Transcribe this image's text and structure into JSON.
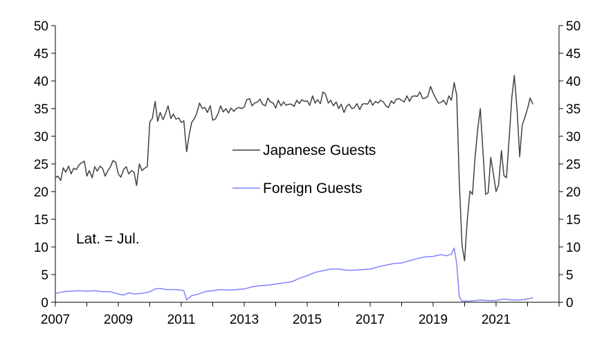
{
  "chart_data": {
    "type": "line",
    "x_range": [
      2007,
      2023.0
    ],
    "ylim": [
      0,
      50
    ],
    "y_ticks": [
      "0",
      "5",
      "10",
      "15",
      "20",
      "25",
      "30",
      "35",
      "40",
      "45",
      "50"
    ],
    "x_ticks": [
      "2007",
      "2009",
      "2011",
      "2013",
      "2015",
      "2017",
      "2019",
      "2021"
    ],
    "x_tick_values": [
      2007,
      2009,
      2011,
      2013,
      2015,
      2017,
      2019,
      2021
    ],
    "grid": false,
    "legend_position": "center",
    "annotation": "Lat. = Jul.",
    "series": [
      {
        "name": "Japanese Guests",
        "color": "#404040",
        "points": [
          [
            2007.0,
            22.5
          ],
          [
            2007.08,
            22.8
          ],
          [
            2007.17,
            22.0
          ],
          [
            2007.25,
            24.3
          ],
          [
            2007.33,
            23.5
          ],
          [
            2007.42,
            24.6
          ],
          [
            2007.5,
            23.2
          ],
          [
            2007.58,
            24.2
          ],
          [
            2007.67,
            24.0
          ],
          [
            2007.75,
            24.8
          ],
          [
            2007.83,
            25.2
          ],
          [
            2007.92,
            25.5
          ],
          [
            2008.0,
            22.8
          ],
          [
            2008.08,
            23.8
          ],
          [
            2008.17,
            22.5
          ],
          [
            2008.25,
            24.5
          ],
          [
            2008.33,
            23.7
          ],
          [
            2008.42,
            24.6
          ],
          [
            2008.5,
            24.2
          ],
          [
            2008.58,
            22.8
          ],
          [
            2008.67,
            23.8
          ],
          [
            2008.75,
            24.5
          ],
          [
            2008.83,
            25.6
          ],
          [
            2008.92,
            25.3
          ],
          [
            2009.0,
            23.2
          ],
          [
            2009.08,
            22.6
          ],
          [
            2009.17,
            24.0
          ],
          [
            2009.25,
            24.5
          ],
          [
            2009.33,
            23.2
          ],
          [
            2009.42,
            23.8
          ],
          [
            2009.5,
            23.5
          ],
          [
            2009.58,
            21.1
          ],
          [
            2009.67,
            25.0
          ],
          [
            2009.75,
            23.8
          ],
          [
            2009.83,
            24.2
          ],
          [
            2009.92,
            24.5
          ],
          [
            2010.0,
            32.6
          ],
          [
            2010.08,
            33.2
          ],
          [
            2010.17,
            36.3
          ],
          [
            2010.25,
            32.7
          ],
          [
            2010.33,
            34.3
          ],
          [
            2010.42,
            33.0
          ],
          [
            2010.5,
            34.1
          ],
          [
            2010.58,
            35.5
          ],
          [
            2010.67,
            33.2
          ],
          [
            2010.75,
            34.0
          ],
          [
            2010.83,
            33.1
          ],
          [
            2010.92,
            33.3
          ],
          [
            2011.0,
            32.5
          ],
          [
            2011.08,
            32.8
          ],
          [
            2011.17,
            27.2
          ],
          [
            2011.25,
            30.2
          ],
          [
            2011.33,
            32.5
          ],
          [
            2011.42,
            33.2
          ],
          [
            2011.5,
            34.3
          ],
          [
            2011.58,
            36.0
          ],
          [
            2011.67,
            35.0
          ],
          [
            2011.75,
            35.2
          ],
          [
            2011.83,
            34.3
          ],
          [
            2011.92,
            35.5
          ],
          [
            2012.0,
            32.9
          ],
          [
            2012.08,
            33.1
          ],
          [
            2012.17,
            34.1
          ],
          [
            2012.25,
            35.5
          ],
          [
            2012.33,
            34.4
          ],
          [
            2012.42,
            35.0
          ],
          [
            2012.5,
            34.2
          ],
          [
            2012.58,
            35.1
          ],
          [
            2012.67,
            34.5
          ],
          [
            2012.75,
            35.0
          ],
          [
            2012.83,
            35.2
          ],
          [
            2012.92,
            35.0
          ],
          [
            2013.0,
            35.3
          ],
          [
            2013.08,
            36.6
          ],
          [
            2013.17,
            36.8
          ],
          [
            2013.25,
            35.5
          ],
          [
            2013.33,
            36.0
          ],
          [
            2013.42,
            36.2
          ],
          [
            2013.5,
            36.7
          ],
          [
            2013.58,
            35.8
          ],
          [
            2013.67,
            35.5
          ],
          [
            2013.75,
            36.9
          ],
          [
            2013.83,
            36.2
          ],
          [
            2013.92,
            36.0
          ],
          [
            2014.0,
            35.1
          ],
          [
            2014.08,
            36.5
          ],
          [
            2014.17,
            35.5
          ],
          [
            2014.25,
            36.2
          ],
          [
            2014.33,
            35.6
          ],
          [
            2014.42,
            35.8
          ],
          [
            2014.5,
            35.8
          ],
          [
            2014.58,
            35.4
          ],
          [
            2014.67,
            36.5
          ],
          [
            2014.75,
            35.9
          ],
          [
            2014.83,
            36.6
          ],
          [
            2014.92,
            36.3
          ],
          [
            2015.0,
            36.4
          ],
          [
            2015.08,
            35.6
          ],
          [
            2015.17,
            37.3
          ],
          [
            2015.25,
            36.0
          ],
          [
            2015.33,
            36.6
          ],
          [
            2015.42,
            35.9
          ],
          [
            2015.5,
            38.0
          ],
          [
            2015.58,
            37.6
          ],
          [
            2015.67,
            36.0
          ],
          [
            2015.75,
            36.5
          ],
          [
            2015.83,
            35.5
          ],
          [
            2015.92,
            36.2
          ],
          [
            2016.0,
            35.0
          ],
          [
            2016.08,
            35.8
          ],
          [
            2016.17,
            34.3
          ],
          [
            2016.25,
            35.4
          ],
          [
            2016.33,
            35.8
          ],
          [
            2016.42,
            35.0
          ],
          [
            2016.5,
            35.2
          ],
          [
            2016.58,
            35.9
          ],
          [
            2016.67,
            34.8
          ],
          [
            2016.75,
            35.8
          ],
          [
            2016.83,
            35.9
          ],
          [
            2016.92,
            35.8
          ],
          [
            2017.0,
            36.6
          ],
          [
            2017.08,
            35.6
          ],
          [
            2017.17,
            36.3
          ],
          [
            2017.25,
            36.0
          ],
          [
            2017.33,
            36.5
          ],
          [
            2017.42,
            36.2
          ],
          [
            2017.5,
            35.5
          ],
          [
            2017.58,
            35.2
          ],
          [
            2017.67,
            36.4
          ],
          [
            2017.75,
            35.9
          ],
          [
            2017.83,
            36.7
          ],
          [
            2017.92,
            36.8
          ],
          [
            2018.0,
            36.5
          ],
          [
            2018.08,
            36.2
          ],
          [
            2018.17,
            37.3
          ],
          [
            2018.25,
            36.3
          ],
          [
            2018.33,
            37.2
          ],
          [
            2018.42,
            37.3
          ],
          [
            2018.5,
            37.2
          ],
          [
            2018.58,
            38.0
          ],
          [
            2018.67,
            36.8
          ],
          [
            2018.75,
            36.9
          ],
          [
            2018.83,
            37.2
          ],
          [
            2018.92,
            39.0
          ],
          [
            2019.0,
            37.8
          ],
          [
            2019.08,
            36.9
          ],
          [
            2019.17,
            36.0
          ],
          [
            2019.25,
            36.1
          ],
          [
            2019.33,
            36.5
          ],
          [
            2019.42,
            35.7
          ],
          [
            2019.5,
            37.3
          ],
          [
            2019.58,
            36.5
          ],
          [
            2019.67,
            39.7
          ],
          [
            2019.75,
            37.4
          ],
          [
            2019.83,
            22.0
          ],
          [
            2019.92,
            10.2
          ],
          [
            2020.0,
            7.5
          ],
          [
            2020.08,
            14.5
          ],
          [
            2020.17,
            20.1
          ],
          [
            2020.25,
            19.5
          ],
          [
            2020.33,
            26.0
          ],
          [
            2020.42,
            31.5
          ],
          [
            2020.5,
            35.0
          ],
          [
            2020.58,
            27.5
          ],
          [
            2020.67,
            19.5
          ],
          [
            2020.75,
            19.8
          ],
          [
            2020.83,
            26.2
          ],
          [
            2020.92,
            23.0
          ],
          [
            2021.0,
            20.0
          ],
          [
            2021.08,
            21.2
          ],
          [
            2021.17,
            27.4
          ],
          [
            2021.25,
            22.9
          ],
          [
            2021.33,
            22.5
          ],
          [
            2021.42,
            30.0
          ],
          [
            2021.5,
            37.0
          ],
          [
            2021.58,
            41.0
          ],
          [
            2021.67,
            34.5
          ],
          [
            2021.75,
            26.3
          ],
          [
            2021.83,
            32.0
          ],
          [
            2021.92,
            33.5
          ],
          [
            2022.0,
            35.0
          ],
          [
            2022.08,
            36.9
          ],
          [
            2022.17,
            35.8
          ]
        ]
      },
      {
        "name": "Foreign Guests",
        "color": "#8080ff",
        "points": [
          [
            2007.0,
            1.6
          ],
          [
            2007.25,
            1.9
          ],
          [
            2007.5,
            2.0
          ],
          [
            2007.75,
            2.1
          ],
          [
            2008.0,
            2.0
          ],
          [
            2008.25,
            2.1
          ],
          [
            2008.5,
            1.9
          ],
          [
            2008.75,
            1.9
          ],
          [
            2009.0,
            1.5
          ],
          [
            2009.17,
            1.3
          ],
          [
            2009.33,
            1.7
          ],
          [
            2009.5,
            1.5
          ],
          [
            2009.75,
            1.6
          ],
          [
            2010.0,
            1.9
          ],
          [
            2010.17,
            2.4
          ],
          [
            2010.33,
            2.5
          ],
          [
            2010.5,
            2.3
          ],
          [
            2010.75,
            2.3
          ],
          [
            2011.0,
            2.2
          ],
          [
            2011.08,
            2.1
          ],
          [
            2011.17,
            0.4
          ],
          [
            2011.33,
            1.2
          ],
          [
            2011.5,
            1.4
          ],
          [
            2011.75,
            1.9
          ],
          [
            2012.0,
            2.1
          ],
          [
            2012.25,
            2.3
          ],
          [
            2012.5,
            2.2
          ],
          [
            2012.75,
            2.3
          ],
          [
            2013.0,
            2.4
          ],
          [
            2013.25,
            2.8
          ],
          [
            2013.5,
            3.0
          ],
          [
            2013.75,
            3.1
          ],
          [
            2014.0,
            3.3
          ],
          [
            2014.25,
            3.5
          ],
          [
            2014.5,
            3.7
          ],
          [
            2014.75,
            4.3
          ],
          [
            2015.0,
            4.8
          ],
          [
            2015.25,
            5.4
          ],
          [
            2015.5,
            5.7
          ],
          [
            2015.75,
            6.0
          ],
          [
            2016.0,
            6.0
          ],
          [
            2016.25,
            5.8
          ],
          [
            2016.5,
            5.8
          ],
          [
            2016.75,
            5.9
          ],
          [
            2017.0,
            6.0
          ],
          [
            2017.25,
            6.4
          ],
          [
            2017.5,
            6.7
          ],
          [
            2017.75,
            7.0
          ],
          [
            2018.0,
            7.1
          ],
          [
            2018.25,
            7.5
          ],
          [
            2018.5,
            7.9
          ],
          [
            2018.75,
            8.2
          ],
          [
            2019.0,
            8.3
          ],
          [
            2019.25,
            8.6
          ],
          [
            2019.42,
            8.4
          ],
          [
            2019.58,
            8.7
          ],
          [
            2019.67,
            9.8
          ],
          [
            2019.75,
            7.0
          ],
          [
            2019.83,
            1.0
          ],
          [
            2019.92,
            0.2
          ],
          [
            2020.17,
            0.2
          ],
          [
            2020.5,
            0.4
          ],
          [
            2020.75,
            0.3
          ],
          [
            2021.0,
            0.3
          ],
          [
            2021.25,
            0.6
          ],
          [
            2021.5,
            0.4
          ],
          [
            2021.75,
            0.4
          ],
          [
            2022.0,
            0.6
          ],
          [
            2022.17,
            0.8
          ]
        ]
      }
    ]
  }
}
